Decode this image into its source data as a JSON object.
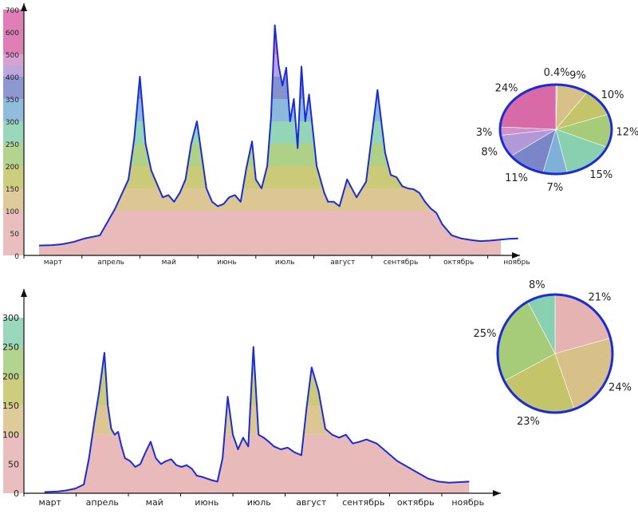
{
  "chart_data": [
    {
      "type": "area",
      "title": "",
      "xlabel": "",
      "ylabel": "",
      "ylim": [
        0,
        700
      ],
      "y_ticks": [
        0,
        50,
        100,
        150,
        200,
        250,
        300,
        350,
        400,
        500,
        600,
        700
      ],
      "y_tick_labels": [
        "0",
        "50",
        "100",
        "150",
        "200",
        "250",
        "300",
        "350",
        "400",
        "500",
        "600",
        "700"
      ],
      "months": [
        "март",
        "апрель",
        "май",
        "июнь",
        "июль",
        "август",
        "сентябрь",
        "октябрь",
        "ноябрь"
      ],
      "x_note": "day index, 0 = 1 March",
      "band_edges": [
        0,
        100,
        150,
        200,
        250,
        300,
        350,
        400,
        450,
        500,
        700
      ],
      "band_colors": [
        "#e6b3b3",
        "#d8c188",
        "#c4c46a",
        "#a6cc7a",
        "#88d0b0",
        "#7fb0d8",
        "#7a86c8",
        "#b398d8",
        "#d090c8",
        "#d86aa8"
      ],
      "line_color": "#1a2bd8",
      "x": [
        8,
        15,
        20,
        26,
        32,
        40,
        48,
        55,
        58,
        61,
        64,
        67,
        70,
        73,
        76,
        79,
        82,
        85,
        88,
        91,
        93,
        96,
        99,
        102,
        105,
        108,
        111,
        114,
        117,
        120,
        122,
        125,
        128,
        130,
        132,
        134,
        136,
        138,
        140,
        142,
        144,
        146,
        148,
        150,
        152,
        154,
        156,
        158,
        160,
        163,
        166,
        170,
        175,
        180,
        186,
        190,
        193,
        196,
        199,
        202,
        205,
        208,
        211,
        214,
        217,
        220,
        225,
        230,
        236,
        240,
        245,
        250,
        255,
        260
      ],
      "values": [
        22,
        23,
        25,
        30,
        38,
        45,
        105,
        170,
        260,
        400,
        250,
        190,
        160,
        130,
        135,
        120,
        140,
        170,
        250,
        300,
        240,
        150,
        120,
        110,
        115,
        130,
        135,
        120,
        195,
        255,
        170,
        150,
        200,
        310,
        630,
        450,
        380,
        440,
        300,
        350,
        240,
        445,
        300,
        360,
        280,
        200,
        170,
        140,
        120,
        120,
        110,
        170,
        130,
        165,
        370,
        230,
        180,
        175,
        155,
        150,
        148,
        140,
        120,
        105,
        95,
        70,
        45,
        38,
        34,
        32,
        33,
        35,
        37,
        38
      ],
      "pie": {
        "labels": [
          "0.4%",
          "9%",
          "10%",
          "12%",
          "15%",
          "7%",
          "11%",
          "8%",
          "3%",
          "24%"
        ],
        "values": [
          0.4,
          9,
          10,
          12,
          15,
          7,
          11,
          8,
          3,
          24
        ],
        "colors": [
          "#e6b3b3",
          "#d8c188",
          "#c4c46a",
          "#a6cc7a",
          "#88d0b0",
          "#7fb0d8",
          "#7a86c8",
          "#b398d8",
          "#d090c8",
          "#d86aa8"
        ]
      }
    },
    {
      "type": "area",
      "title": "",
      "xlabel": "",
      "ylabel": "",
      "ylim": [
        0,
        300
      ],
      "y_ticks": [
        0,
        50,
        100,
        150,
        200,
        250,
        300
      ],
      "y_tick_labels": [
        "0",
        "50",
        "100",
        "150",
        "200",
        "250",
        "300"
      ],
      "months": [
        "март",
        "апрель",
        "май",
        "июнь",
        "июль",
        "август",
        "сентябрь",
        "октябрь",
        "ноябрь"
      ],
      "x_note": "day index, 0 = 1 March",
      "band_edges": [
        0,
        100,
        150,
        200,
        250,
        300
      ],
      "band_colors": [
        "#e6b3b3",
        "#d8c188",
        "#c4c46a",
        "#a6cc7a",
        "#88d0b0"
      ],
      "line_color": "#1a2bd8",
      "x": [
        12,
        20,
        25,
        30,
        35,
        38,
        41,
        44,
        47,
        49,
        51,
        53,
        55,
        57,
        59,
        62,
        65,
        68,
        71,
        74,
        77,
        80,
        83,
        86,
        89,
        92,
        95,
        98,
        101,
        104,
        107,
        110,
        113,
        116,
        119,
        122,
        125,
        128,
        131,
        134,
        137,
        140,
        143,
        146,
        150,
        154,
        158,
        162,
        165,
        168,
        172,
        176,
        180,
        184,
        188,
        192,
        196,
        200,
        206,
        212,
        218,
        224,
        230,
        236,
        242,
        248,
        254,
        260
      ],
      "values": [
        2,
        3,
        5,
        8,
        15,
        60,
        120,
        175,
        240,
        150,
        110,
        100,
        105,
        80,
        60,
        55,
        45,
        50,
        70,
        88,
        60,
        50,
        55,
        58,
        48,
        45,
        48,
        42,
        30,
        28,
        25,
        22,
        20,
        60,
        165,
        100,
        75,
        95,
        80,
        250,
        100,
        95,
        88,
        80,
        75,
        78,
        70,
        65,
        145,
        215,
        175,
        110,
        100,
        95,
        100,
        85,
        88,
        92,
        85,
        70,
        55,
        45,
        35,
        25,
        20,
        18,
        19,
        20
      ],
      "pie": {
        "labels": [
          "21%",
          "24%",
          "23%",
          "25%",
          "8%"
        ],
        "values": [
          21,
          24,
          23,
          25,
          8
        ],
        "colors": [
          "#e6b3b3",
          "#d8c188",
          "#c4c46a",
          "#a6cc7a",
          "#88d0b0"
        ]
      }
    }
  ]
}
